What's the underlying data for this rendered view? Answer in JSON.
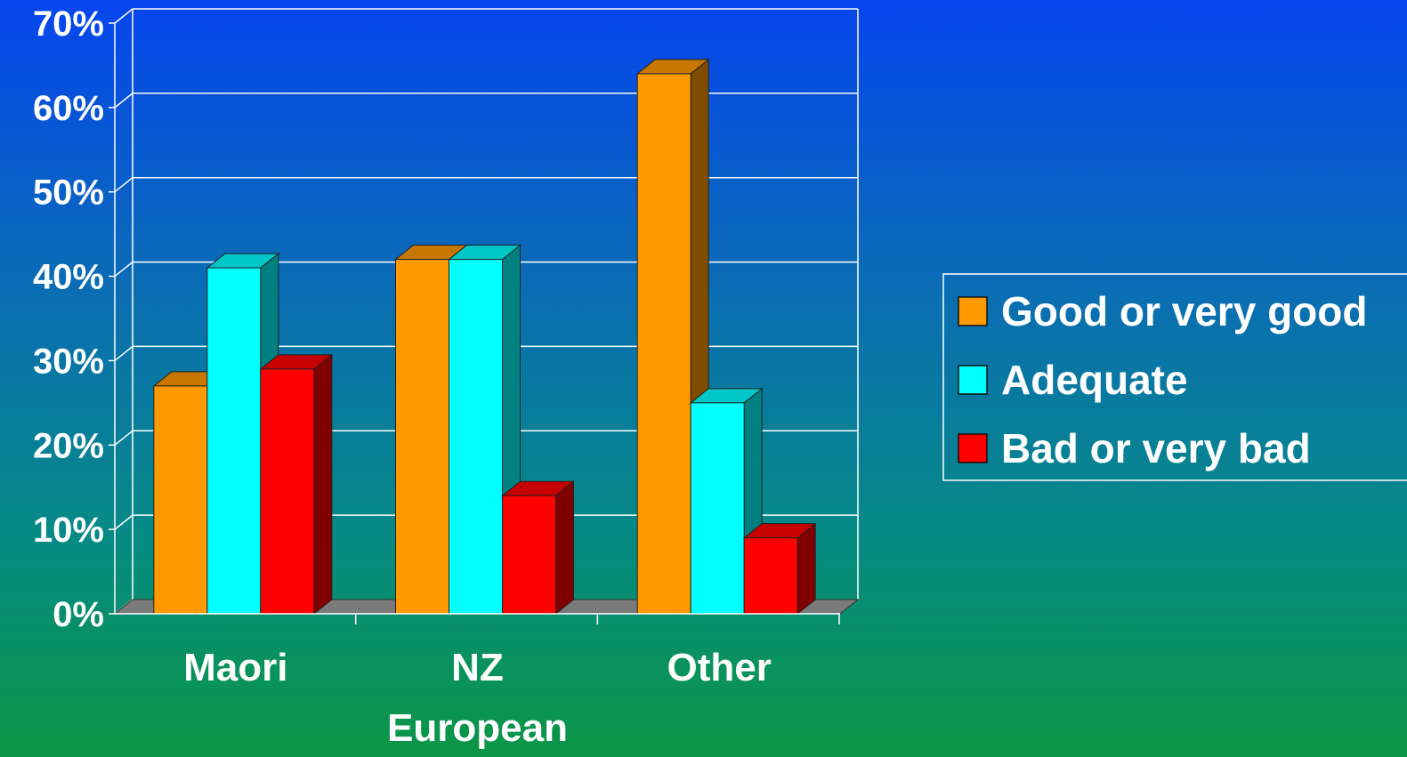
{
  "colors": {
    "good": "#ff9900",
    "adequate": "#00ffff",
    "bad": "#ff0000",
    "floor": "#7a7a7a",
    "lines": "#ffffff"
  },
  "chart_data": {
    "type": "bar",
    "style": "3d-clustered",
    "categories": [
      [
        "Maori"
      ],
      [
        "NZ",
        "European"
      ],
      [
        "Other"
      ]
    ],
    "series": [
      {
        "name": "Good or very good",
        "color_key": "good",
        "values": [
          27,
          42,
          64
        ]
      },
      {
        "name": "Adequate",
        "color_key": "adequate",
        "values": [
          41,
          42,
          25
        ]
      },
      {
        "name": "Bad or very bad",
        "color_key": "bad",
        "values": [
          29,
          14,
          9
        ]
      }
    ],
    "yticks": [
      "0%",
      "10%",
      "20%",
      "30%",
      "40%",
      "50%",
      "60%",
      "70%"
    ],
    "ylim": [
      0,
      70
    ],
    "grid": true,
    "legend_position": "right"
  }
}
